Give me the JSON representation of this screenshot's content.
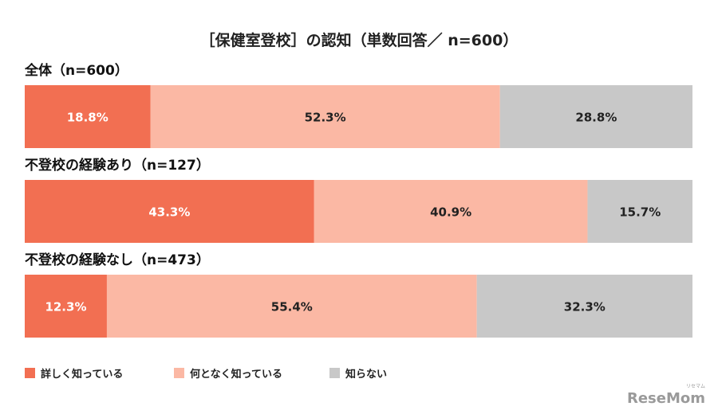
{
  "chart_data": {
    "type": "stacked-bar-horizontal",
    "title": "［保健室登校］の認知（単数回答／ n=600）",
    "categories": [
      "全体（n=600）",
      "不登校の経験あり（n=127）",
      "不登校の経験なし（n=473）"
    ],
    "series": [
      {
        "name": "詳しく知っている",
        "color": "#f26f52",
        "values": [
          18.8,
          43.3,
          12.3
        ],
        "labels": [
          "18.8%",
          "43.3%",
          "12.3%"
        ]
      },
      {
        "name": "何となく知っている",
        "color": "#fbb8a4",
        "values": [
          52.3,
          40.9,
          55.4
        ],
        "labels": [
          "52.3%",
          "40.9%",
          "55.4%"
        ]
      },
      {
        "name": "知らない",
        "color": "#c8c8c8",
        "values": [
          28.8,
          15.7,
          32.3
        ],
        "labels": [
          "28.8%",
          "15.7%",
          "32.3%"
        ]
      }
    ],
    "label_colors": [
      "#ffffff",
      "#222222",
      "#222222"
    ],
    "xlim": [
      0,
      100
    ],
    "unit": "%",
    "legend_position": "bottom-left",
    "grid": false
  },
  "watermark": {
    "text": "ReseMom",
    "small": "リセマム"
  }
}
